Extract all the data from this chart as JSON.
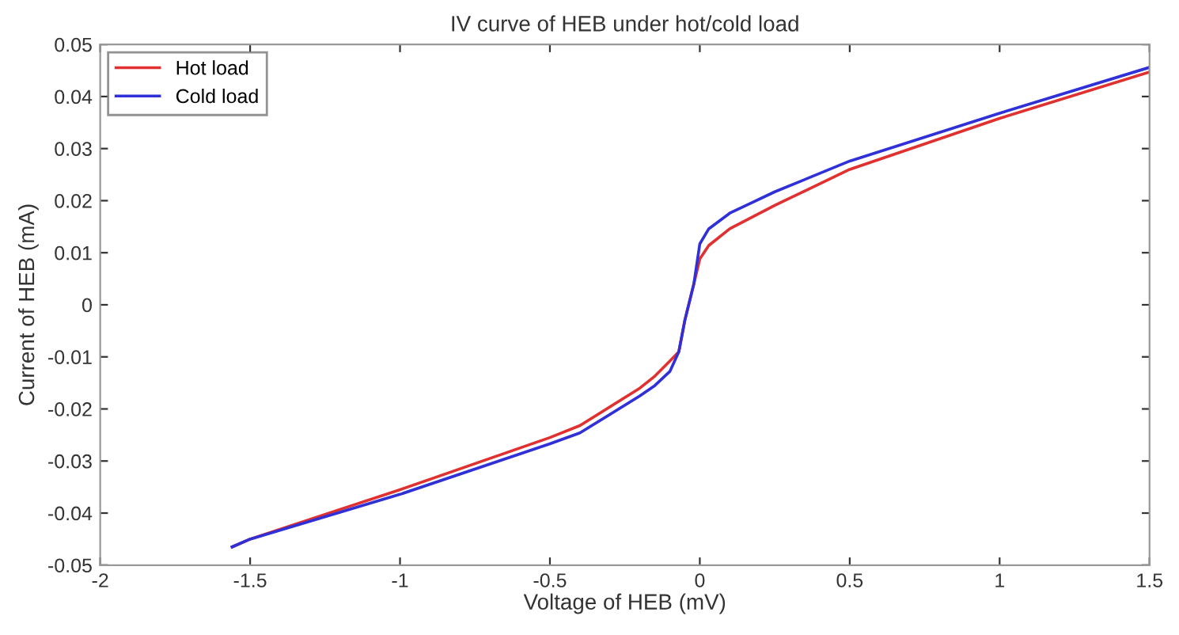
{
  "chart_data": {
    "type": "line",
    "title": "IV curve of HEB under hot/cold load",
    "xlabel": "Voltage of HEB (mV)",
    "ylabel": "Current of HEB (mA)",
    "xlim": [
      -2,
      1.5
    ],
    "xticks": [
      -2,
      -1.5,
      -1,
      -0.5,
      0,
      0.5,
      1,
      1.5
    ],
    "ylim": [
      -0.05,
      0.05
    ],
    "yticks": [
      -0.05,
      -0.04,
      -0.03,
      -0.02,
      -0.01,
      0,
      0.01,
      0.02,
      0.03,
      0.04,
      0.05
    ],
    "grid": false,
    "legend": "top left",
    "series": [
      {
        "name": "Hot load",
        "color": "#e03030",
        "x": [
          -1.56,
          -1.5,
          -1.0,
          -0.5,
          -0.4,
          -0.2,
          -0.15,
          -0.1,
          -0.07,
          -0.05,
          -0.02,
          0,
          0.03,
          0.1,
          0.25,
          0.5,
          1.0,
          1.5
        ],
        "values": [
          -0.0465,
          -0.045,
          -0.0355,
          -0.0255,
          -0.0232,
          -0.016,
          -0.0137,
          -0.0108,
          -0.009,
          -0.003,
          0.004,
          0.0088,
          0.0114,
          0.0146,
          0.0191,
          0.026,
          0.0358,
          0.0447
        ]
      },
      {
        "name": "Cold load",
        "color": "#3030d8",
        "x": [
          -1.56,
          -1.5,
          -1.0,
          -0.5,
          -0.4,
          -0.2,
          -0.15,
          -0.1,
          -0.07,
          -0.05,
          -0.02,
          0,
          0.03,
          0.1,
          0.25,
          0.5,
          1.0,
          1.5
        ],
        "values": [
          -0.0465,
          -0.045,
          -0.0364,
          -0.0267,
          -0.0246,
          -0.0175,
          -0.0155,
          -0.0128,
          -0.009,
          -0.003,
          0.004,
          0.0117,
          0.0146,
          0.0176,
          0.0217,
          0.0276,
          0.0368,
          0.0456
        ]
      }
    ]
  }
}
